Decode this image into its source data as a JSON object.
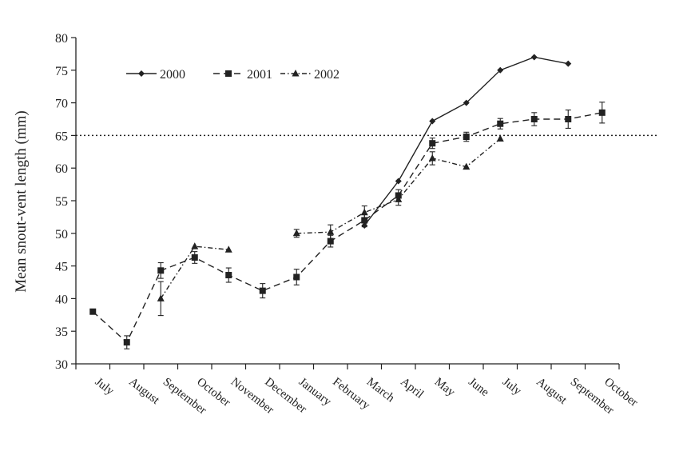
{
  "chart_data": {
    "type": "line",
    "title": "",
    "xlabel": "",
    "ylabel": "Mean snout-vent length (mm)",
    "ylim": [
      30,
      80
    ],
    "yticks": [
      30,
      35,
      40,
      45,
      50,
      55,
      60,
      65,
      70,
      75,
      80
    ],
    "categories": [
      "July",
      "August",
      "September",
      "October",
      "November",
      "December",
      "January",
      "February",
      "March",
      "April",
      "May",
      "June",
      "July",
      "August",
      "September",
      "October"
    ],
    "reference_line": {
      "y": 65,
      "style": "dotted"
    },
    "legend_position": "top-left",
    "grid": false,
    "series": [
      {
        "name": "2000",
        "marker": "diamond",
        "line_style": "solid",
        "points": [
          {
            "x": 8.5,
            "y": 51.2
          },
          {
            "x": 9.5,
            "y": 58.0
          },
          {
            "x": 10.5,
            "y": 67.2
          },
          {
            "x": 11.5,
            "y": 70.0
          },
          {
            "x": 12.5,
            "y": 75.0
          },
          {
            "x": 13.5,
            "y": 77.0
          },
          {
            "x": 14.5,
            "y": 76.0
          }
        ]
      },
      {
        "name": "2001",
        "marker": "square",
        "line_style": "dashed",
        "points": [
          {
            "x": 0.5,
            "y": 38.0,
            "err": 0
          },
          {
            "x": 1.5,
            "y": 33.3,
            "err": 1.0
          },
          {
            "x": 2.5,
            "y": 44.3,
            "err": 1.2
          },
          {
            "x": 3.5,
            "y": 46.3,
            "err": 0.9
          },
          {
            "x": 4.5,
            "y": 43.6,
            "err": 1.1
          },
          {
            "x": 5.5,
            "y": 41.2,
            "err": 1.1
          },
          {
            "x": 6.5,
            "y": 43.3,
            "err": 1.2
          },
          {
            "x": 7.5,
            "y": 48.8,
            "err": 0.9
          },
          {
            "x": 8.5,
            "y": 52.0,
            "err": 1.0
          },
          {
            "x": 9.5,
            "y": 55.8,
            "err": 0.9
          },
          {
            "x": 10.5,
            "y": 63.8,
            "err": 0.8
          },
          {
            "x": 11.5,
            "y": 64.8,
            "err": 0.7
          },
          {
            "x": 12.5,
            "y": 66.8,
            "err": 0.8
          },
          {
            "x": 13.5,
            "y": 67.5,
            "err": 1.0
          },
          {
            "x": 14.5,
            "y": 67.5,
            "err": 1.4
          },
          {
            "x": 15.5,
            "y": 68.5,
            "err": 1.6
          }
        ]
      },
      {
        "name": "2002",
        "marker": "triangle",
        "line_style": "dash-dot",
        "segments": [
          [
            {
              "x": 2.5,
              "y": 40.0,
              "err": 2.6
            },
            {
              "x": 3.5,
              "y": 48.0,
              "err": 0
            },
            {
              "x": 4.5,
              "y": 47.5,
              "err": 0
            }
          ],
          [
            {
              "x": 6.5,
              "y": 50.0,
              "err": 0.6
            },
            {
              "x": 7.5,
              "y": 50.2,
              "err": 1.1
            },
            {
              "x": 8.5,
              "y": 53.2,
              "err": 1.0
            },
            {
              "x": 9.5,
              "y": 55.2,
              "err": 0.9
            },
            {
              "x": 10.5,
              "y": 61.5,
              "err": 1.0
            },
            {
              "x": 11.5,
              "y": 60.2,
              "err": 0
            },
            {
              "x": 12.5,
              "y": 64.5,
              "err": 0
            }
          ]
        ]
      }
    ]
  }
}
